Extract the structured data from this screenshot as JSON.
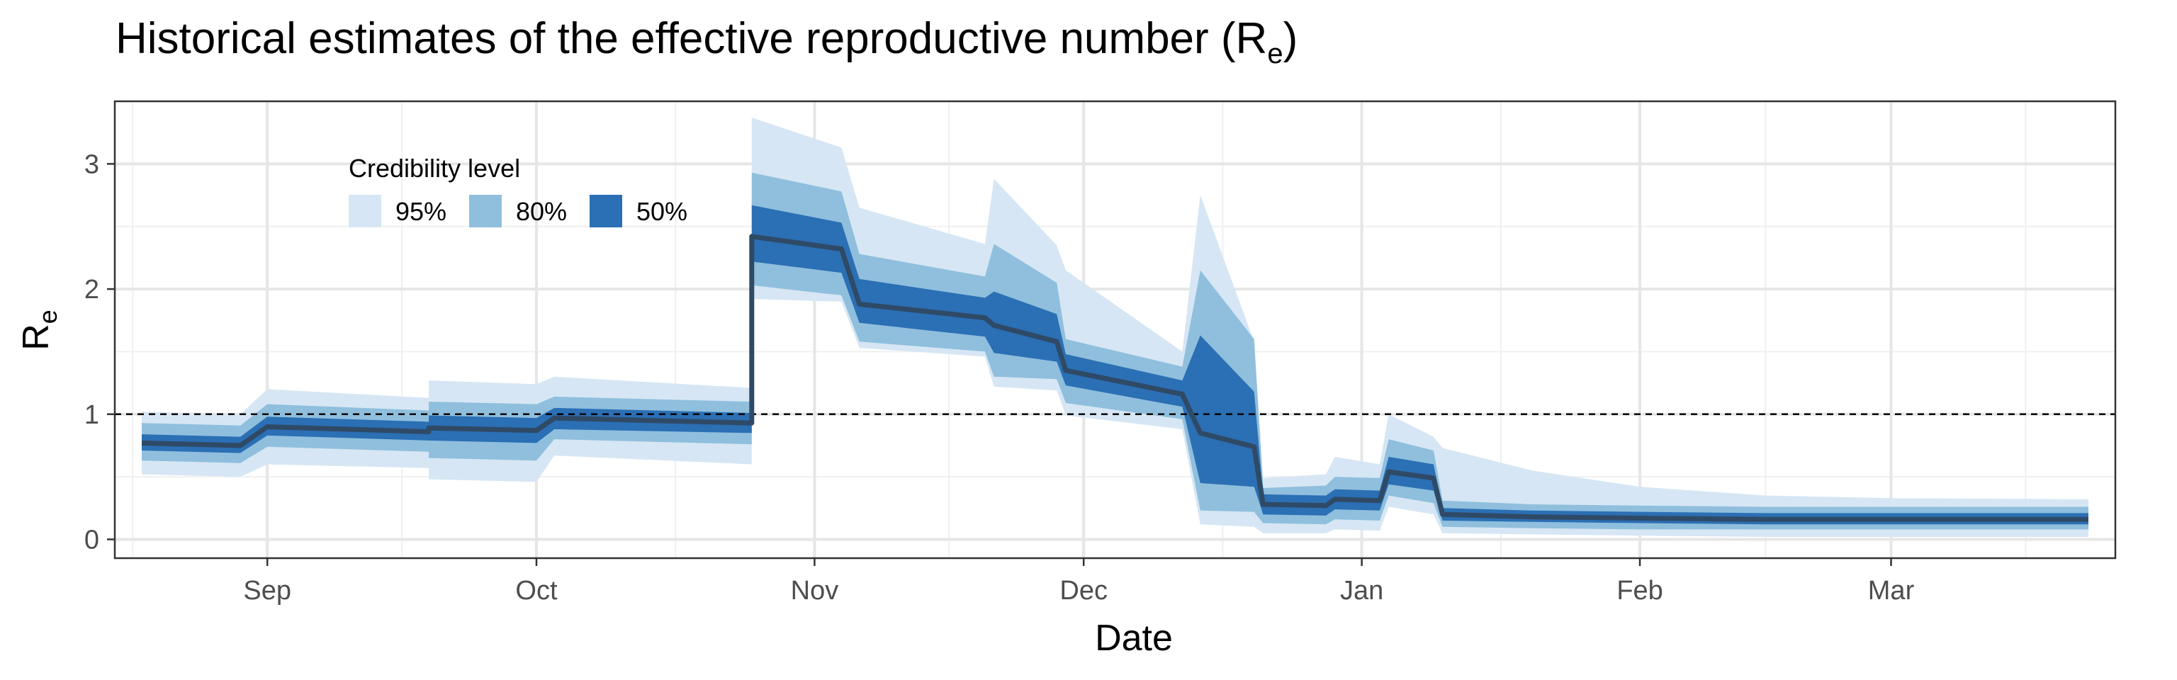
{
  "chart_data": {
    "type": "area",
    "title_main": "Historical estimates of the effective reproductive number (R",
    "title_sub": "e",
    "title_end": ")",
    "xlabel": "Date",
    "ylabel_main": "R",
    "ylabel_sub": "e",
    "x_type": "date",
    "xlim": [
      "2020-08-15",
      "2021-03-26"
    ],
    "ylim": [
      -0.15,
      3.5
    ],
    "grid": true,
    "reference_line": {
      "y": 1,
      "style": "dashed"
    },
    "y_ticks": [
      {
        "value": 0,
        "label": "0"
      },
      {
        "value": 1,
        "label": "1"
      },
      {
        "value": 2,
        "label": "2"
      },
      {
        "value": 3,
        "label": "3"
      }
    ],
    "x_ticks": [
      {
        "date": "2020-09-01",
        "label": "Sep"
      },
      {
        "date": "2020-10-01",
        "label": "Oct"
      },
      {
        "date": "2020-11-01",
        "label": "Nov"
      },
      {
        "date": "2020-12-01",
        "label": "Dec"
      },
      {
        "date": "2021-01-01",
        "label": "Jan"
      },
      {
        "date": "2021-02-01",
        "label": "Feb"
      },
      {
        "date": "2021-03-01",
        "label": "Mar"
      }
    ],
    "legend": {
      "title": "Credibility level",
      "placement": "top-left",
      "entries": [
        {
          "label": "95%",
          "color": "#d6e6f4"
        },
        {
          "label": "80%",
          "color": "#8fbfdd"
        },
        {
          "label": "50%",
          "color": "#2b6fb4"
        }
      ]
    },
    "colors": {
      "median_line": "#2f4a66",
      "ci95": "#d6e6f4",
      "ci80": "#8fbfdd",
      "ci50": "#2b6fb4"
    },
    "series": [
      {
        "date": "2020-08-18",
        "median": 0.77,
        "lo50": 0.71,
        "hi50": 0.84,
        "lo80": 0.63,
        "hi80": 0.93,
        "lo95": 0.52,
        "hi95": 1.02
      },
      {
        "date": "2020-08-29",
        "median": 0.75,
        "lo50": 0.69,
        "hi50": 0.82,
        "lo80": 0.61,
        "hi80": 0.91,
        "lo95": 0.5,
        "hi95": 1.0
      },
      {
        "date": "2020-09-01",
        "median": 0.9,
        "lo50": 0.83,
        "hi50": 0.98,
        "lo80": 0.74,
        "hi80": 1.08,
        "lo95": 0.6,
        "hi95": 1.2
      },
      {
        "date": "2020-09-19",
        "median": 0.86,
        "lo50": 0.79,
        "hi50": 0.94,
        "lo80": 0.7,
        "hi80": 1.03,
        "lo95": 0.57,
        "hi95": 1.13
      },
      {
        "date": "2020-09-19",
        "median": 0.89,
        "lo50": 0.79,
        "hi50": 0.99,
        "lo80": 0.65,
        "hi80": 1.1,
        "lo95": 0.48,
        "hi95": 1.27
      },
      {
        "date": "2020-10-01",
        "median": 0.87,
        "lo50": 0.77,
        "hi50": 0.97,
        "lo80": 0.63,
        "hi80": 1.08,
        "lo95": 0.46,
        "hi95": 1.24
      },
      {
        "date": "2020-10-03",
        "median": 0.97,
        "lo50": 0.88,
        "hi50": 1.05,
        "lo80": 0.8,
        "hi80": 1.14,
        "lo95": 0.67,
        "hi95": 1.3
      },
      {
        "date": "2020-10-25",
        "median": 0.93,
        "lo50": 0.85,
        "hi50": 1.01,
        "lo80": 0.76,
        "hi80": 1.1,
        "lo95": 0.6,
        "hi95": 1.21
      },
      {
        "date": "2020-10-25",
        "median": 2.42,
        "lo50": 2.22,
        "hi50": 2.67,
        "lo80": 2.03,
        "hi80": 2.93,
        "lo95": 1.92,
        "hi95": 3.37
      },
      {
        "date": "2020-11-04",
        "median": 2.32,
        "lo50": 2.13,
        "hi50": 2.53,
        "lo80": 1.95,
        "hi80": 2.78,
        "lo95": 1.9,
        "hi95": 3.13
      },
      {
        "date": "2020-11-06",
        "median": 1.88,
        "lo50": 1.73,
        "hi50": 2.08,
        "lo80": 1.58,
        "hi80": 2.28,
        "lo95": 1.53,
        "hi95": 2.65
      },
      {
        "date": "2020-11-20",
        "median": 1.77,
        "lo50": 1.62,
        "hi50": 1.93,
        "lo80": 1.5,
        "hi80": 2.1,
        "lo95": 1.46,
        "hi95": 2.36
      },
      {
        "date": "2020-11-21",
        "median": 1.71,
        "lo50": 1.49,
        "hi50": 1.98,
        "lo80": 1.3,
        "hi80": 2.36,
        "lo95": 1.22,
        "hi95": 2.88
      },
      {
        "date": "2020-11-28",
        "median": 1.58,
        "lo50": 1.42,
        "hi50": 1.8,
        "lo80": 1.28,
        "hi80": 2.05,
        "lo95": 1.19,
        "hi95": 2.35
      },
      {
        "date": "2020-11-29",
        "median": 1.35,
        "lo50": 1.23,
        "hi50": 1.48,
        "lo80": 1.09,
        "hi80": 1.6,
        "lo95": 0.99,
        "hi95": 2.15
      },
      {
        "date": "2020-12-12",
        "median": 1.16,
        "lo50": 1.06,
        "hi50": 1.27,
        "lo80": 0.96,
        "hi80": 1.38,
        "lo95": 0.88,
        "hi95": 1.5
      },
      {
        "date": "2020-12-14",
        "median": 0.85,
        "lo50": 0.45,
        "hi50": 1.63,
        "lo80": 0.23,
        "hi80": 2.15,
        "lo95": 0.12,
        "hi95": 2.75
      },
      {
        "date": "2020-12-20",
        "median": 0.74,
        "lo50": 0.42,
        "hi50": 1.18,
        "lo80": 0.22,
        "hi80": 1.6,
        "lo95": 0.1,
        "hi95": 1.58
      },
      {
        "date": "2020-12-21",
        "median": 0.28,
        "lo50": 0.2,
        "hi50": 0.36,
        "lo80": 0.13,
        "hi80": 0.41,
        "lo95": 0.05,
        "hi95": 0.49
      },
      {
        "date": "2020-12-28",
        "median": 0.27,
        "lo50": 0.19,
        "hi50": 0.35,
        "lo80": 0.12,
        "hi80": 0.43,
        "lo95": 0.05,
        "hi95": 0.52
      },
      {
        "date": "2020-12-29",
        "median": 0.32,
        "lo50": 0.24,
        "hi50": 0.4,
        "lo80": 0.16,
        "hi80": 0.5,
        "lo95": 0.08,
        "hi95": 0.66
      },
      {
        "date": "2021-01-03",
        "median": 0.31,
        "lo50": 0.23,
        "hi50": 0.39,
        "lo80": 0.15,
        "hi80": 0.49,
        "lo95": 0.07,
        "hi95": 0.6
      },
      {
        "date": "2021-01-04",
        "median": 0.54,
        "lo50": 0.44,
        "hi50": 0.66,
        "lo80": 0.35,
        "hi80": 0.8,
        "lo95": 0.26,
        "hi95": 1.0
      },
      {
        "date": "2021-01-09",
        "median": 0.49,
        "lo50": 0.39,
        "hi50": 0.6,
        "lo80": 0.29,
        "hi80": 0.71,
        "lo95": 0.2,
        "hi95": 0.82
      },
      {
        "date": "2021-01-10",
        "median": 0.2,
        "lo50": 0.15,
        "hi50": 0.25,
        "lo80": 0.1,
        "hi80": 0.31,
        "lo95": 0.05,
        "hi95": 0.73
      },
      {
        "date": "2021-01-20",
        "median": 0.18,
        "lo50": 0.14,
        "hi50": 0.23,
        "lo80": 0.09,
        "hi80": 0.28,
        "lo95": 0.04,
        "hi95": 0.55
      },
      {
        "date": "2021-02-01",
        "median": 0.17,
        "lo50": 0.13,
        "hi50": 0.22,
        "lo80": 0.08,
        "hi80": 0.27,
        "lo95": 0.03,
        "hi95": 0.42
      },
      {
        "date": "2021-02-15",
        "median": 0.16,
        "lo50": 0.12,
        "hi50": 0.21,
        "lo80": 0.08,
        "hi80": 0.26,
        "lo95": 0.02,
        "hi95": 0.35
      },
      {
        "date": "2021-03-01",
        "median": 0.16,
        "lo50": 0.12,
        "hi50": 0.21,
        "lo80": 0.08,
        "hi80": 0.26,
        "lo95": 0.02,
        "hi95": 0.33
      },
      {
        "date": "2021-03-23",
        "median": 0.16,
        "lo50": 0.12,
        "hi50": 0.21,
        "lo80": 0.08,
        "hi80": 0.26,
        "lo95": 0.02,
        "hi95": 0.32
      }
    ]
  }
}
